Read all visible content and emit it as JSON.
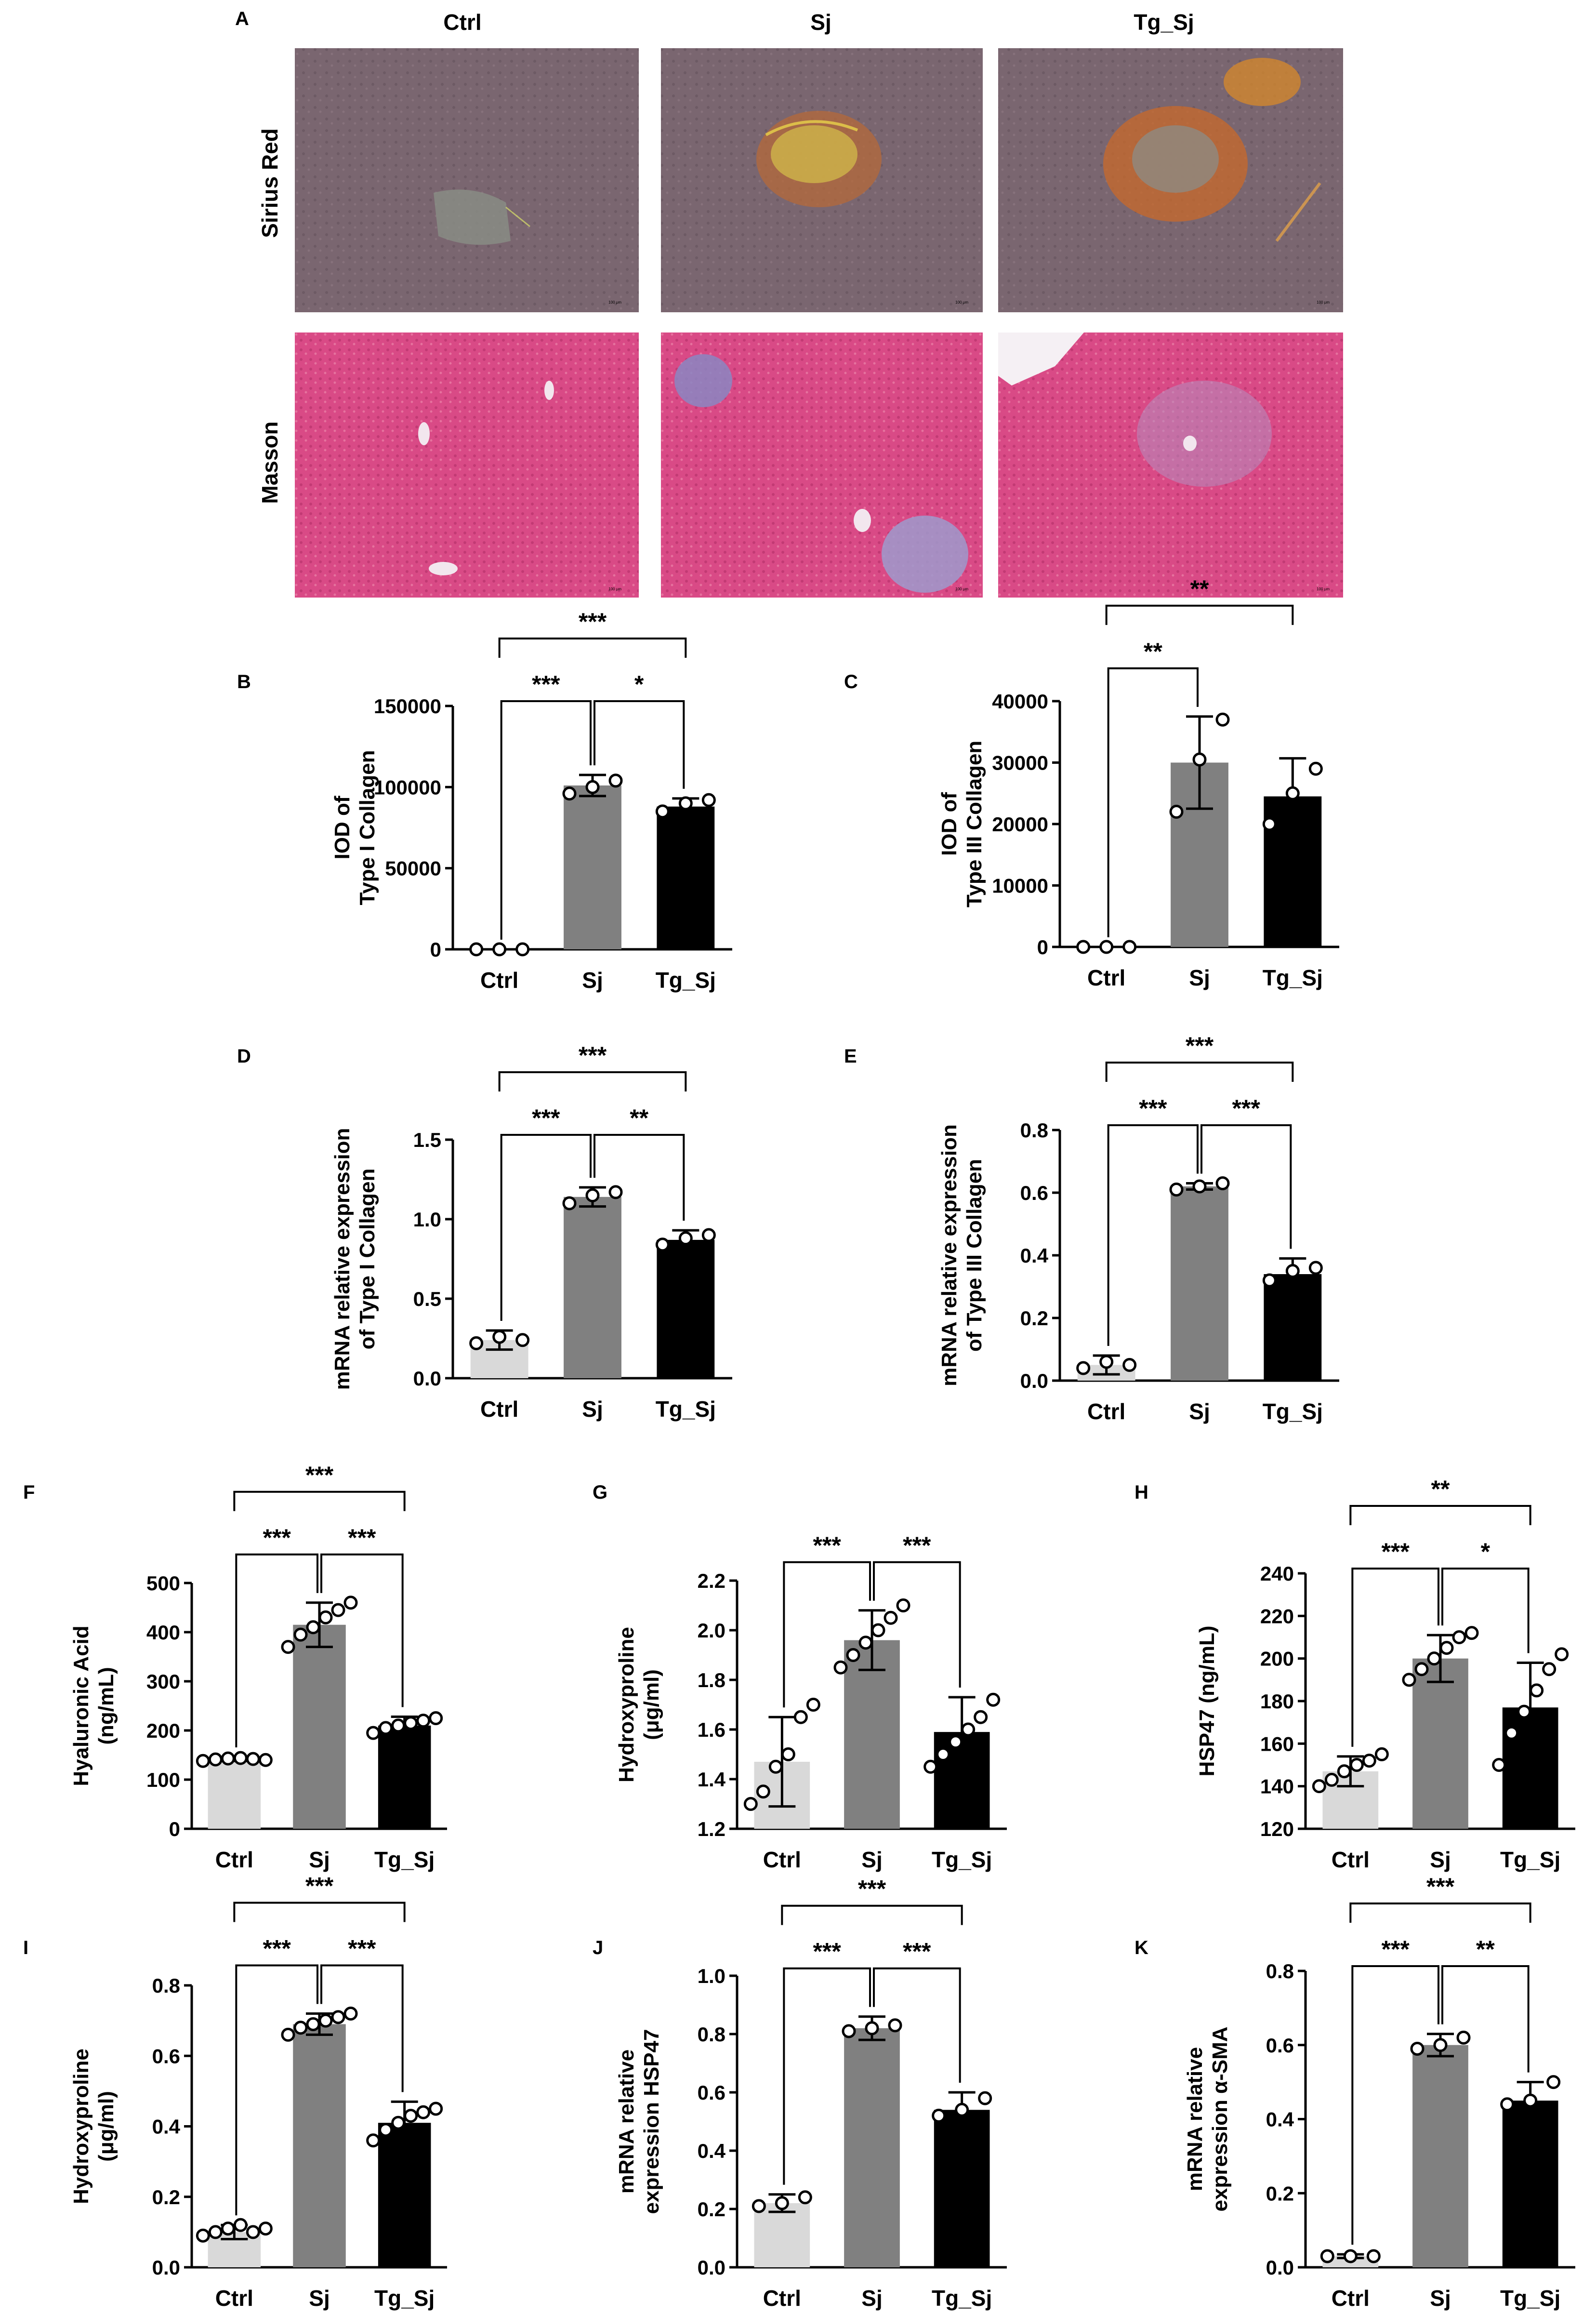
{
  "panel_a": {
    "label": "A",
    "columns": [
      "Ctrl",
      "Sj",
      "Tg_Sj"
    ],
    "rows": [
      "Sirius Red",
      "Masson"
    ],
    "scale_bar_text": "100 μm"
  },
  "colors": {
    "ctrl_bar": "#d9d9d9",
    "sj_bar": "#808080",
    "tg_sj_bar": "#000000",
    "sirius_bg": "#7a6670",
    "masson_bg": "#d94a86"
  },
  "chart_data": [
    {
      "id": "B",
      "type": "bar",
      "label": "B",
      "categories": [
        "Ctrl",
        "Sj",
        "Tg_Sj"
      ],
      "values": [
        0,
        101000,
        88000
      ],
      "errors": [
        0,
        6500,
        5000
      ],
      "points": [
        [
          0,
          0,
          0
        ],
        [
          96000,
          100000,
          104000
        ],
        [
          85000,
          90000,
          92000
        ]
      ],
      "ylabel": [
        "IOD of",
        "Type I Collagen"
      ],
      "ylim": [
        0,
        150000
      ],
      "yticks": [
        0,
        50000,
        100000,
        150000
      ],
      "ytick_labels": [
        "0",
        "50000",
        "100000",
        "150000"
      ],
      "sig": [
        {
          "a": 0,
          "b": 1,
          "text": "***"
        },
        {
          "a": 1,
          "b": 2,
          "text": "*"
        },
        {
          "a": 0,
          "b": 2,
          "text": "***"
        }
      ]
    },
    {
      "id": "C",
      "type": "bar",
      "label": "C",
      "categories": [
        "Ctrl",
        "Sj",
        "Tg_Sj"
      ],
      "values": [
        0,
        30000,
        24500
      ],
      "errors": [
        0,
        7500,
        6200
      ],
      "points": [
        [
          0,
          0,
          0
        ],
        [
          22000,
          30500,
          37000
        ],
        [
          20000,
          25000,
          29000
        ]
      ],
      "ylabel": [
        "IOD of",
        "Type III Collagen"
      ],
      "ylim": [
        0,
        40000
      ],
      "yticks": [
        0,
        10000,
        20000,
        30000,
        40000
      ],
      "ytick_labels": [
        "0",
        "10000",
        "20000",
        "30000",
        "40000"
      ],
      "sig": [
        {
          "a": 0,
          "b": 1,
          "text": "**"
        },
        {
          "a": 0,
          "b": 2,
          "text": "**"
        }
      ]
    },
    {
      "id": "D",
      "type": "bar",
      "label": "D",
      "categories": [
        "Ctrl",
        "Sj",
        "Tg_Sj"
      ],
      "values": [
        0.24,
        1.14,
        0.87
      ],
      "errors": [
        0.06,
        0.06,
        0.06
      ],
      "points": [
        [
          0.22,
          0.26,
          0.24
        ],
        [
          1.1,
          1.15,
          1.17
        ],
        [
          0.84,
          0.88,
          0.9
        ]
      ],
      "ylabel": [
        "mRNA relative expression",
        "of Type I Collagen"
      ],
      "ylim": [
        0,
        1.5
      ],
      "yticks": [
        0,
        0.5,
        1.0,
        1.5
      ],
      "ytick_labels": [
        "0.0",
        "0.5",
        "1.0",
        "1.5"
      ],
      "sig": [
        {
          "a": 0,
          "b": 1,
          "text": "***"
        },
        {
          "a": 1,
          "b": 2,
          "text": "**"
        },
        {
          "a": 0,
          "b": 2,
          "text": "***"
        }
      ]
    },
    {
      "id": "E",
      "type": "bar",
      "label": "E",
      "categories": [
        "Ctrl",
        "Sj",
        "Tg_Sj"
      ],
      "values": [
        0.05,
        0.62,
        0.34
      ],
      "errors": [
        0.03,
        0.01,
        0.05
      ],
      "points": [
        [
          0.04,
          0.06,
          0.05
        ],
        [
          0.61,
          0.62,
          0.63
        ],
        [
          0.32,
          0.35,
          0.36
        ]
      ],
      "ylabel": [
        "mRNA relative expression",
        "of Type III Collagen"
      ],
      "ylim": [
        0,
        0.8
      ],
      "yticks": [
        0,
        0.2,
        0.4,
        0.6,
        0.8
      ],
      "ytick_labels": [
        "0.0",
        "0.2",
        "0.4",
        "0.6",
        "0.8"
      ],
      "sig": [
        {
          "a": 0,
          "b": 1,
          "text": "***"
        },
        {
          "a": 1,
          "b": 2,
          "text": "***"
        },
        {
          "a": 0,
          "b": 2,
          "text": "***"
        }
      ]
    },
    {
      "id": "F",
      "type": "bar",
      "label": "F",
      "categories": [
        "Ctrl",
        "Sj",
        "Tg_Sj"
      ],
      "values": [
        142,
        415,
        210
      ],
      "errors": [
        4,
        45,
        18
      ],
      "points": [
        [
          138,
          141,
          143,
          144,
          142,
          140
        ],
        [
          370,
          395,
          410,
          430,
          445,
          460
        ],
        [
          195,
          205,
          210,
          215,
          220,
          225
        ]
      ],
      "ylabel": [
        "Hyaluronic Acid",
        "(ng/mL)"
      ],
      "ylim": [
        0,
        500
      ],
      "yticks": [
        0,
        100,
        200,
        300,
        400,
        500
      ],
      "ytick_labels": [
        "0",
        "100",
        "200",
        "300",
        "400",
        "500"
      ],
      "sig": [
        {
          "a": 0,
          "b": 1,
          "text": "***"
        },
        {
          "a": 1,
          "b": 2,
          "text": "***"
        },
        {
          "a": 0,
          "b": 2,
          "text": "***"
        }
      ]
    },
    {
      "id": "G",
      "type": "bar",
      "label": "G",
      "categories": [
        "Ctrl",
        "Sj",
        "Tg_Sj"
      ],
      "values": [
        1.47,
        1.96,
        1.59
      ],
      "errors": [
        0.18,
        0.12,
        0.14
      ],
      "points": [
        [
          1.3,
          1.35,
          1.45,
          1.5,
          1.65,
          1.7
        ],
        [
          1.85,
          1.9,
          1.95,
          2.0,
          2.05,
          2.1
        ],
        [
          1.45,
          1.5,
          1.55,
          1.6,
          1.65,
          1.72
        ]
      ],
      "ylabel": [
        "Hydroxyproline",
        "(μg/ml)"
      ],
      "ylim": [
        1.2,
        2.2
      ],
      "yticks": [
        1.2,
        1.4,
        1.6,
        1.8,
        2.0,
        2.2
      ],
      "ytick_labels": [
        "1.2",
        "1.4",
        "1.6",
        "1.8",
        "2.0",
        "2.2"
      ],
      "sig": [
        {
          "a": 0,
          "b": 1,
          "text": "***"
        },
        {
          "a": 1,
          "b": 2,
          "text": "***"
        }
      ]
    },
    {
      "id": "H",
      "type": "bar",
      "label": "H",
      "categories": [
        "Ctrl",
        "Sj",
        "Tg_Sj"
      ],
      "values": [
        147,
        200,
        177
      ],
      "errors": [
        7,
        11,
        21
      ],
      "points": [
        [
          140,
          143,
          147,
          150,
          152,
          155
        ],
        [
          190,
          195,
          200,
          205,
          210,
          212
        ],
        [
          150,
          165,
          175,
          185,
          195,
          202
        ]
      ],
      "ylabel": [
        "HSP47 (ng/mL)"
      ],
      "ylim": [
        120,
        240
      ],
      "yticks": [
        120,
        140,
        160,
        180,
        200,
        220,
        240
      ],
      "ytick_labels": [
        "120",
        "140",
        "160",
        "180",
        "200",
        "220",
        "240"
      ],
      "sig": [
        {
          "a": 0,
          "b": 1,
          "text": "***"
        },
        {
          "a": 1,
          "b": 2,
          "text": "*"
        },
        {
          "a": 0,
          "b": 2,
          "text": "**"
        }
      ]
    },
    {
      "id": "I",
      "type": "bar",
      "label": "I",
      "categories": [
        "Ctrl",
        "Sj",
        "Tg_Sj"
      ],
      "values": [
        0.1,
        0.69,
        0.41
      ],
      "errors": [
        0.02,
        0.03,
        0.06
      ],
      "points": [
        [
          0.09,
          0.1,
          0.11,
          0.12,
          0.1,
          0.11
        ],
        [
          0.66,
          0.68,
          0.69,
          0.7,
          0.71,
          0.72
        ],
        [
          0.36,
          0.39,
          0.41,
          0.43,
          0.44,
          0.45
        ]
      ],
      "ylabel": [
        "Hydroxyproline",
        "(μg/ml)"
      ],
      "ylim": [
        0,
        0.8
      ],
      "yticks": [
        0,
        0.2,
        0.4,
        0.6,
        0.8
      ],
      "ytick_labels": [
        "0.0",
        "0.2",
        "0.4",
        "0.6",
        "0.8"
      ],
      "sig": [
        {
          "a": 0,
          "b": 1,
          "text": "***"
        },
        {
          "a": 1,
          "b": 2,
          "text": "***"
        },
        {
          "a": 0,
          "b": 2,
          "text": "***"
        }
      ]
    },
    {
      "id": "J",
      "type": "bar",
      "label": "J",
      "categories": [
        "Ctrl",
        "Sj",
        "Tg_Sj"
      ],
      "values": [
        0.22,
        0.82,
        0.54
      ],
      "errors": [
        0.03,
        0.04,
        0.06
      ],
      "points": [
        [
          0.21,
          0.22,
          0.24
        ],
        [
          0.81,
          0.82,
          0.83
        ],
        [
          0.52,
          0.54,
          0.58
        ]
      ],
      "ylabel": [
        "mRNA relative",
        "expression HSP47"
      ],
      "ylim": [
        0,
        1.0
      ],
      "yticks": [
        0,
        0.2,
        0.4,
        0.6,
        0.8,
        1.0
      ],
      "ytick_labels": [
        "0.0",
        "0.2",
        "0.4",
        "0.6",
        "0.8",
        "1.0"
      ],
      "sig": [
        {
          "a": 0,
          "b": 1,
          "text": "***"
        },
        {
          "a": 1,
          "b": 2,
          "text": "***"
        },
        {
          "a": 0,
          "b": 2,
          "text": "***"
        }
      ]
    },
    {
      "id": "K",
      "type": "bar",
      "label": "K",
      "categories": [
        "Ctrl",
        "Sj",
        "Tg_Sj"
      ],
      "values": [
        0.03,
        0.6,
        0.45
      ],
      "errors": [
        0.005,
        0.03,
        0.05
      ],
      "points": [
        [
          0.03,
          0.03,
          0.03
        ],
        [
          0.59,
          0.6,
          0.62
        ],
        [
          0.44,
          0.45,
          0.5
        ]
      ],
      "ylabel": [
        "mRNA relative",
        "expression α-SMA"
      ],
      "ylim": [
        0,
        0.8
      ],
      "yticks": [
        0,
        0.2,
        0.4,
        0.6,
        0.8
      ],
      "ytick_labels": [
        "0.0",
        "0.2",
        "0.4",
        "0.6",
        "0.8"
      ],
      "sig": [
        {
          "a": 0,
          "b": 1,
          "text": "***"
        },
        {
          "a": 1,
          "b": 2,
          "text": "**"
        },
        {
          "a": 0,
          "b": 2,
          "text": "***"
        }
      ]
    }
  ]
}
